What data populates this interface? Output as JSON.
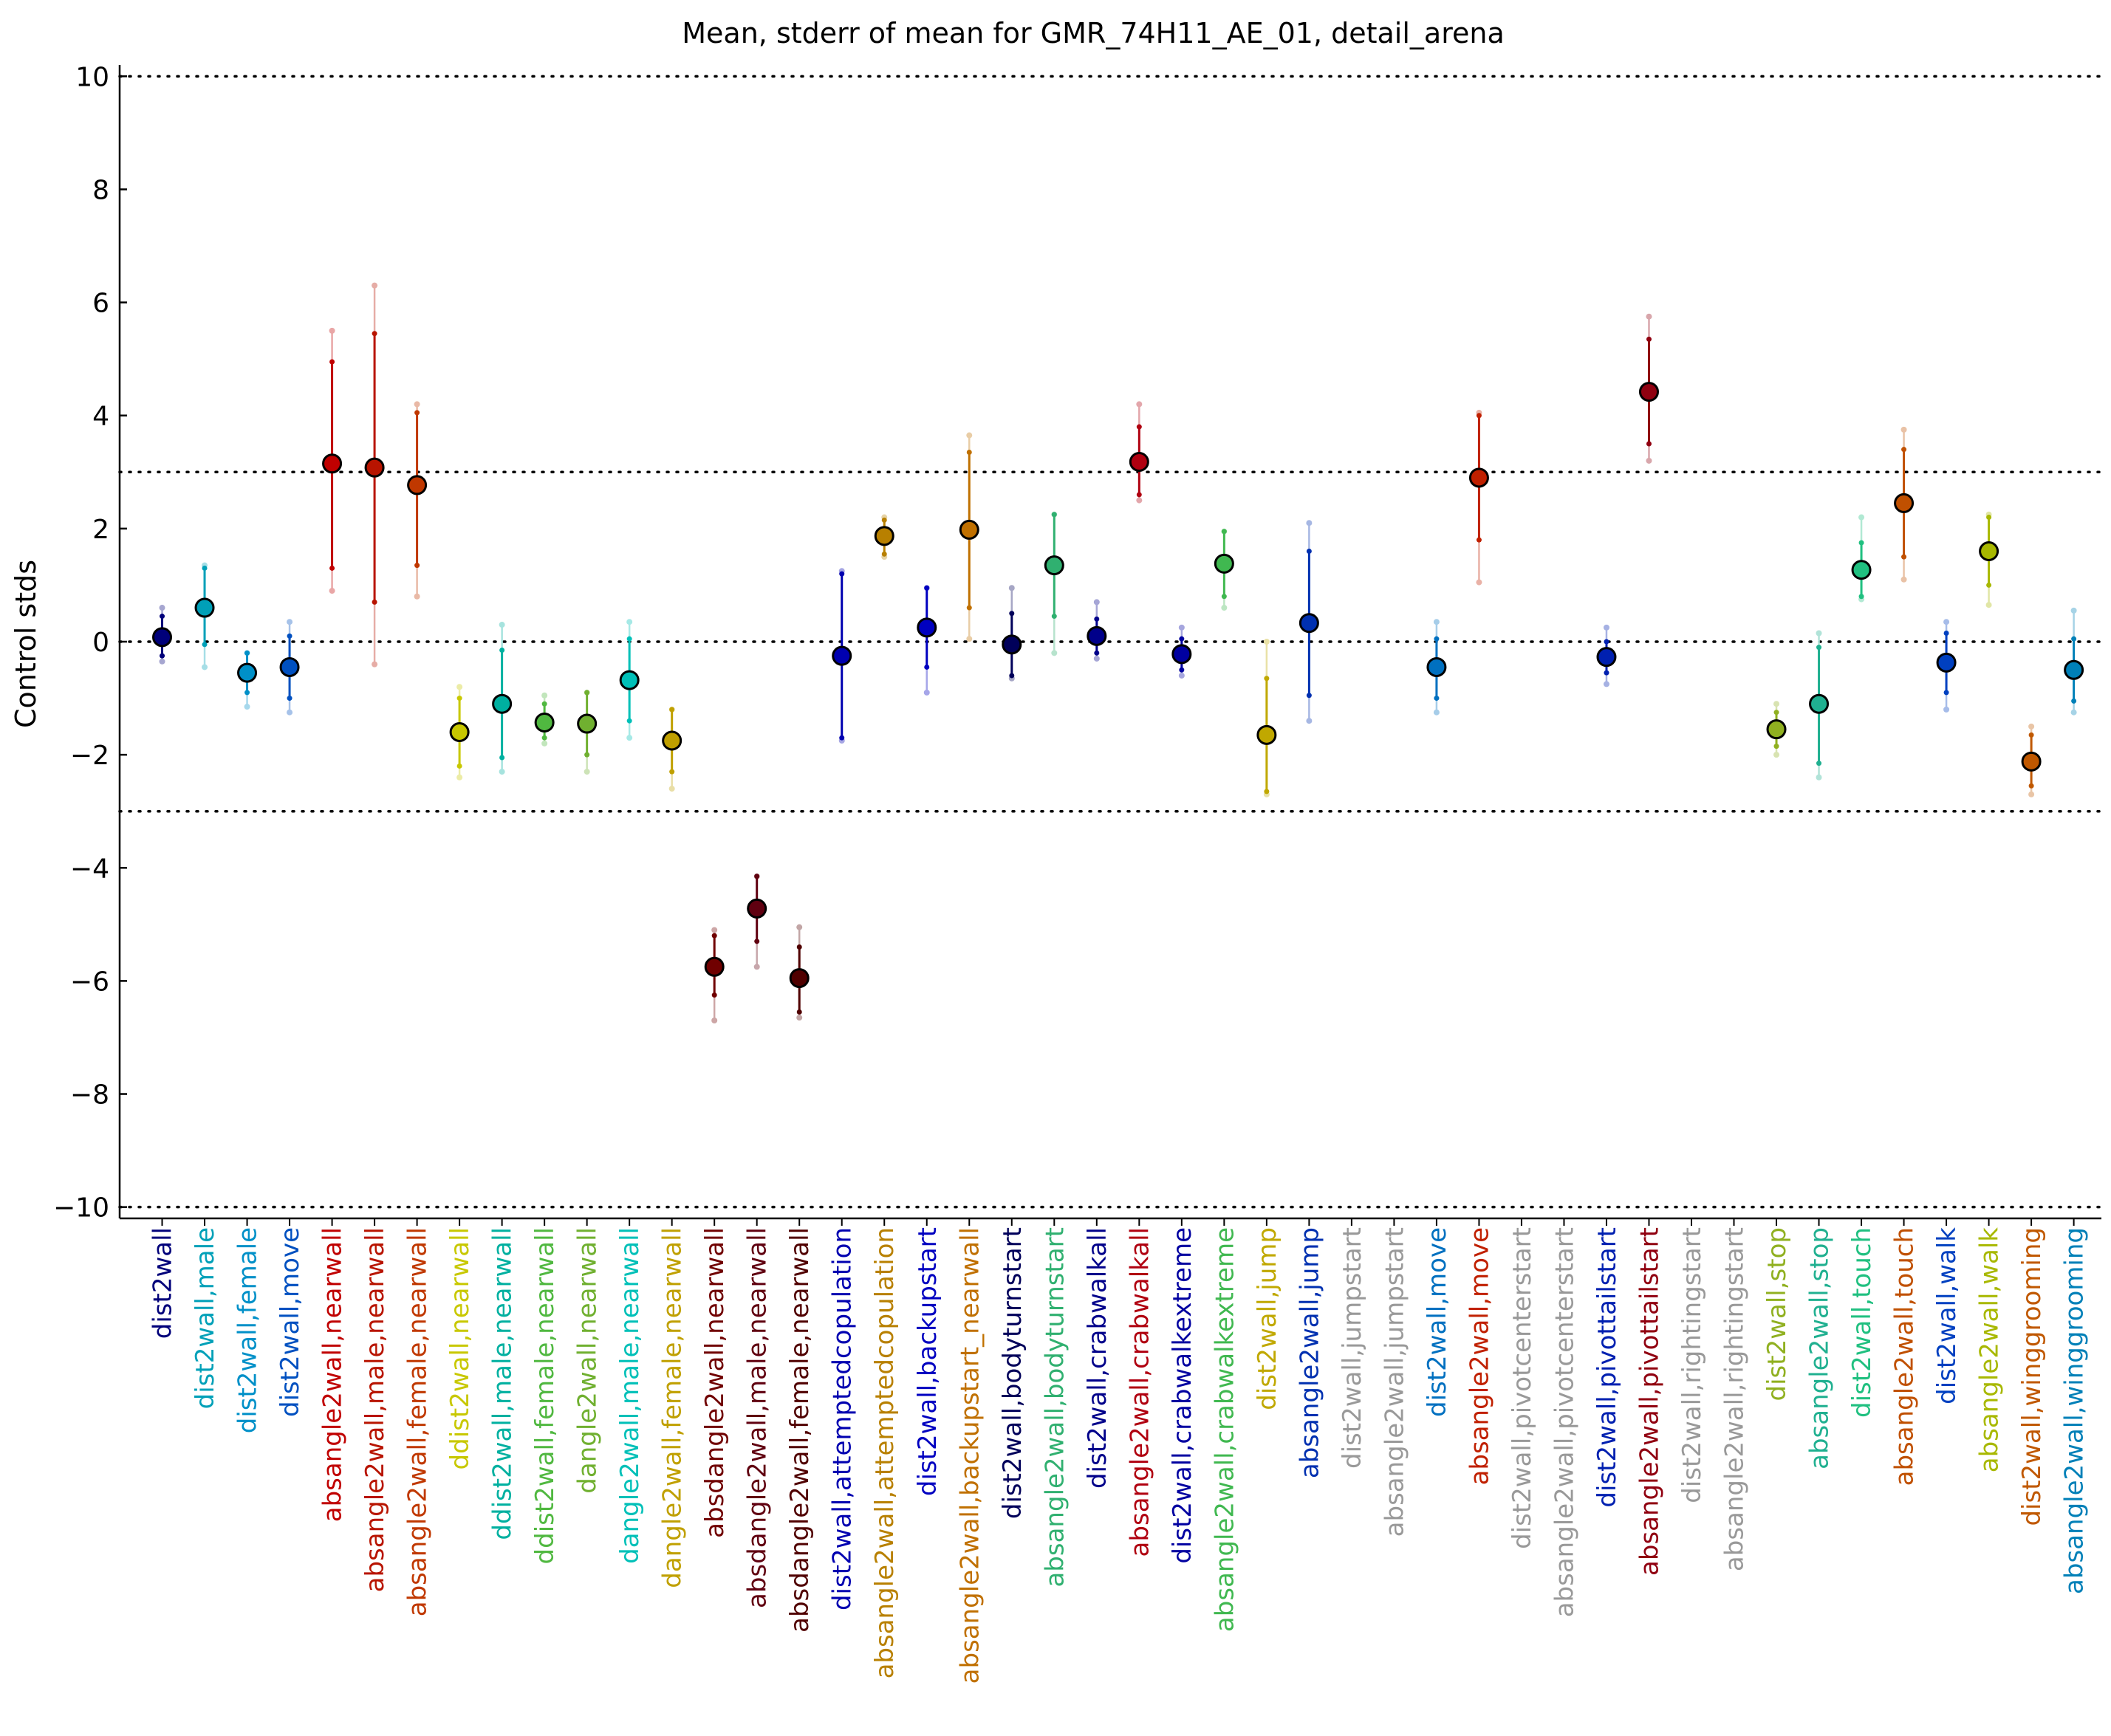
{
  "chart_data": {
    "type": "scatter",
    "title": "Mean, stderr of mean for GMR_74H11_AE_01, detail_arena",
    "ylabel": "Control stds",
    "xlabel": "",
    "ylim": [
      -10.2,
      10.2
    ],
    "yticks": [
      -10,
      -8,
      -6,
      -4,
      -2,
      0,
      2,
      4,
      6,
      8,
      10
    ],
    "reference_lines": [
      -10,
      -3,
      0,
      3,
      10
    ],
    "grid": false,
    "legend": "none",
    "categories": [
      {
        "label": "dist2wall",
        "color": "#00007a",
        "mean": 0.08,
        "err_lo": -0.25,
        "err_hi": 0.45,
        "ext_lo": -0.35,
        "ext_hi": 0.6
      },
      {
        "label": "dist2wall,male",
        "color": "#00a0b8",
        "mean": 0.6,
        "err_lo": -0.05,
        "err_hi": 1.3,
        "ext_lo": -0.45,
        "ext_hi": 1.35
      },
      {
        "label": "dist2wall,female",
        "color": "#0090c8",
        "mean": -0.55,
        "err_lo": -0.9,
        "err_hi": -0.2,
        "ext_lo": -1.15,
        "ext_hi": -0.2
      },
      {
        "label": "dist2wall,move",
        "color": "#0050c0",
        "mean": -0.45,
        "err_lo": -1.0,
        "err_hi": 0.1,
        "ext_lo": -1.25,
        "ext_hi": 0.35
      },
      {
        "label": "absangle2wall,nearwall",
        "color": "#c00000",
        "mean": 3.15,
        "err_lo": 1.3,
        "err_hi": 4.95,
        "ext_lo": 0.9,
        "ext_hi": 5.5
      },
      {
        "label": "absangle2wall,male,nearwall",
        "color": "#b81400",
        "mean": 3.08,
        "err_lo": 0.7,
        "err_hi": 5.45,
        "ext_lo": -0.4,
        "ext_hi": 6.3
      },
      {
        "label": "absangle2wall,female,nearwall",
        "color": "#c03800",
        "mean": 2.77,
        "err_lo": 1.35,
        "err_hi": 4.05,
        "ext_lo": 0.8,
        "ext_hi": 4.2
      },
      {
        "label": "ddist2wall,nearwall",
        "color": "#c8c800",
        "mean": -1.6,
        "err_lo": -2.2,
        "err_hi": -1.0,
        "ext_lo": -2.4,
        "ext_hi": -0.8
      },
      {
        "label": "ddist2wall,male,nearwall",
        "color": "#00b0a0",
        "mean": -1.1,
        "err_lo": -2.05,
        "err_hi": -0.15,
        "ext_lo": -2.3,
        "ext_hi": 0.3
      },
      {
        "label": "ddist2wall,female,nearwall",
        "color": "#50b840",
        "mean": -1.43,
        "err_lo": -1.7,
        "err_hi": -1.1,
        "ext_lo": -1.8,
        "ext_hi": -0.95
      },
      {
        "label": "dangle2wall,nearwall",
        "color": "#70b030",
        "mean": -1.45,
        "err_lo": -2.0,
        "err_hi": -0.9,
        "ext_lo": -2.3,
        "ext_hi": -0.9
      },
      {
        "label": "dangle2wall,male,nearwall",
        "color": "#00c0b8",
        "mean": -0.68,
        "err_lo": -1.4,
        "err_hi": 0.05,
        "ext_lo": -1.7,
        "ext_hi": 0.35
      },
      {
        "label": "dangle2wall,female,nearwall",
        "color": "#c0a000",
        "mean": -1.75,
        "err_lo": -2.3,
        "err_hi": -1.2,
        "ext_lo": -2.6,
        "ext_hi": -1.2
      },
      {
        "label": "absdangle2wall,nearwall",
        "color": "#700000",
        "mean": -5.75,
        "err_lo": -6.25,
        "err_hi": -5.2,
        "ext_lo": -6.7,
        "ext_hi": -5.1
      },
      {
        "label": "absdangle2wall,male,nearwall",
        "color": "#600010",
        "mean": -4.72,
        "err_lo": -5.3,
        "err_hi": -4.15,
        "ext_lo": -5.75,
        "ext_hi": -4.15
      },
      {
        "label": "absdangle2wall,female,nearwall",
        "color": "#500000",
        "mean": -5.95,
        "err_lo": -6.55,
        "err_hi": -5.4,
        "ext_lo": -6.65,
        "ext_hi": -5.05
      },
      {
        "label": "dist2wall,attemptedcopulation",
        "color": "#0000b0",
        "mean": -0.25,
        "err_lo": -1.7,
        "err_hi": 1.2,
        "ext_lo": -1.75,
        "ext_hi": 1.25
      },
      {
        "label": "absangle2wall,attemptedcopulation",
        "color": "#b88000",
        "mean": 1.87,
        "err_lo": 1.55,
        "err_hi": 2.15,
        "ext_lo": 1.5,
        "ext_hi": 2.2
      },
      {
        "label": "dist2wall,backupstart",
        "color": "#0000c0",
        "mean": 0.25,
        "err_lo": -0.45,
        "err_hi": 0.95,
        "ext_lo": -0.9,
        "ext_hi": 0.95
      },
      {
        "label": "absangle2wall,backupstart_nearwall",
        "color": "#c07000",
        "mean": 1.98,
        "err_lo": 0.6,
        "err_hi": 3.35,
        "ext_lo": 0.05,
        "ext_hi": 3.65
      },
      {
        "label": "dist2wall,bodyturnstart",
        "color": "#00005a",
        "mean": -0.05,
        "err_lo": -0.6,
        "err_hi": 0.5,
        "ext_lo": -0.65,
        "ext_hi": 0.95
      },
      {
        "label": "absangle2wall,bodyturnstart",
        "color": "#30b070",
        "mean": 1.35,
        "err_lo": 0.45,
        "err_hi": 2.25,
        "ext_lo": -0.2,
        "ext_hi": 2.25
      },
      {
        "label": "dist2wall,crabwalkall",
        "color": "#00008a",
        "mean": 0.1,
        "err_lo": -0.2,
        "err_hi": 0.4,
        "ext_lo": -0.3,
        "ext_hi": 0.7
      },
      {
        "label": "absangle2wall,crabwalkall",
        "color": "#b00010",
        "mean": 3.18,
        "err_lo": 2.6,
        "err_hi": 3.8,
        "ext_lo": 2.5,
        "ext_hi": 4.2
      },
      {
        "label": "dist2wall,crabwalkextreme",
        "color": "#0000a0",
        "mean": -0.22,
        "err_lo": -0.5,
        "err_hi": 0.05,
        "ext_lo": -0.6,
        "ext_hi": 0.25
      },
      {
        "label": "absangle2wall,crabwalkextreme",
        "color": "#40b850",
        "mean": 1.38,
        "err_lo": 0.8,
        "err_hi": 1.95,
        "ext_lo": 0.6,
        "ext_hi": 1.95
      },
      {
        "label": "dist2wall,jump",
        "color": "#c0a800",
        "mean": -1.65,
        "err_lo": -2.65,
        "err_hi": -0.65,
        "ext_lo": -2.7,
        "ext_hi": 0.0
      },
      {
        "label": "absangle2wall,jump",
        "color": "#0030b0",
        "mean": 0.33,
        "err_lo": -0.95,
        "err_hi": 1.6,
        "ext_lo": -1.4,
        "ext_hi": 2.1
      },
      {
        "label": "dist2wall,jumpstart",
        "color": "#999999"
      },
      {
        "label": "absangle2wall,jumpstart",
        "color": "#999999"
      },
      {
        "label": "dist2wall,move",
        "color": "#0070c0",
        "mean": -0.45,
        "err_lo": -1.0,
        "err_hi": 0.05,
        "ext_lo": -1.25,
        "ext_hi": 0.35
      },
      {
        "label": "absangle2wall,move",
        "color": "#c02000",
        "mean": 2.9,
        "err_lo": 1.8,
        "err_hi": 4.0,
        "ext_lo": 1.05,
        "ext_hi": 4.05
      },
      {
        "label": "dist2wall,pivotcenterstart",
        "color": "#999999"
      },
      {
        "label": "absangle2wall,pivotcenterstart",
        "color": "#999999"
      },
      {
        "label": "dist2wall,pivottailstart",
        "color": "#0020b0",
        "mean": -0.27,
        "err_lo": -0.55,
        "err_hi": 0.0,
        "ext_lo": -0.75,
        "ext_hi": 0.25
      },
      {
        "label": "absangle2wall,pivottailstart",
        "color": "#900010",
        "mean": 4.42,
        "err_lo": 3.5,
        "err_hi": 5.35,
        "ext_lo": 3.2,
        "ext_hi": 5.75
      },
      {
        "label": "dist2wall,rightingstart",
        "color": "#999999"
      },
      {
        "label": "absangle2wall,rightingstart",
        "color": "#999999"
      },
      {
        "label": "dist2wall,stop",
        "color": "#90b020",
        "mean": -1.55,
        "err_lo": -1.85,
        "err_hi": -1.25,
        "ext_lo": -2.0,
        "ext_hi": -1.1
      },
      {
        "label": "absangle2wall,stop",
        "color": "#20b090",
        "mean": -1.1,
        "err_lo": -2.15,
        "err_hi": -0.1,
        "ext_lo": -2.4,
        "ext_hi": 0.15
      },
      {
        "label": "dist2wall,touch",
        "color": "#20c080",
        "mean": 1.27,
        "err_lo": 0.8,
        "err_hi": 1.75,
        "ext_lo": 0.75,
        "ext_hi": 2.2
      },
      {
        "label": "absangle2wall,touch",
        "color": "#c05000",
        "mean": 2.45,
        "err_lo": 1.5,
        "err_hi": 3.4,
        "ext_lo": 1.1,
        "ext_hi": 3.75
      },
      {
        "label": "dist2wall,walk",
        "color": "#0040c0",
        "mean": -0.37,
        "err_lo": -0.9,
        "err_hi": 0.15,
        "ext_lo": -1.2,
        "ext_hi": 0.35
      },
      {
        "label": "absangle2wall,walk",
        "color": "#a8b800",
        "mean": 1.6,
        "err_lo": 1.0,
        "err_hi": 2.2,
        "ext_lo": 0.65,
        "ext_hi": 2.25
      },
      {
        "label": "dist2wall,winggrooming",
        "color": "#c05800",
        "mean": -2.12,
        "err_lo": -2.55,
        "err_hi": -1.65,
        "ext_lo": -2.7,
        "ext_hi": -1.5
      },
      {
        "label": "absangle2wall,winggrooming",
        "color": "#0080b8",
        "mean": -0.5,
        "err_lo": -1.05,
        "err_hi": 0.05,
        "ext_lo": -1.25,
        "ext_hi": 0.55
      }
    ]
  }
}
